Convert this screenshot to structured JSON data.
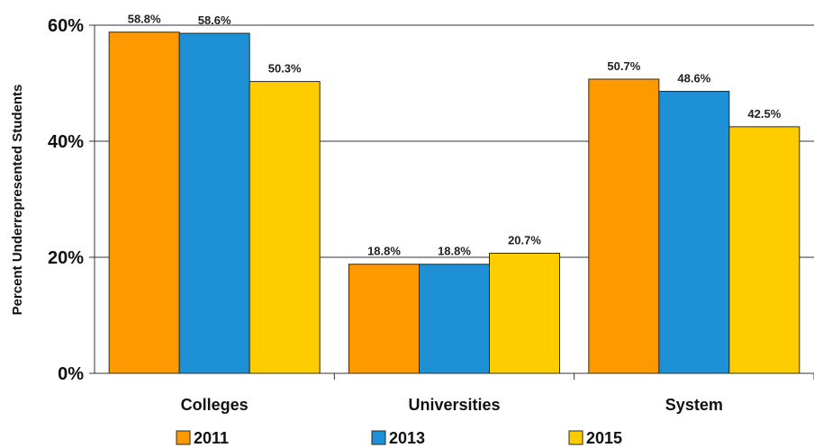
{
  "chart_data": {
    "type": "bar",
    "categories": [
      "Colleges",
      "Universities",
      "System"
    ],
    "series": [
      {
        "name": "2011",
        "values": [
          58.8,
          18.8,
          50.7
        ],
        "color": "#FF9900"
      },
      {
        "name": "2013",
        "values": [
          58.6,
          18.8,
          48.6
        ],
        "color": "#1E90D6"
      },
      {
        "name": "2015",
        "values": [
          50.3,
          20.7,
          42.5
        ],
        "color": "#FFCC00"
      }
    ],
    "data_labels": [
      [
        "58.8%",
        "18.8%",
        "50.7%"
      ],
      [
        "58.6%",
        "18.8%",
        "48.6%"
      ],
      [
        "50.3%",
        "20.7%",
        "42.5%"
      ]
    ],
    "ylabel": "Percent Underrepresented Students",
    "yticks": [
      0,
      20,
      40,
      60
    ],
    "ytick_labels": [
      "0%",
      "20%",
      "40%",
      "60%"
    ],
    "ylim": [
      0,
      60
    ],
    "grid": true,
    "legend_position": "bottom"
  }
}
